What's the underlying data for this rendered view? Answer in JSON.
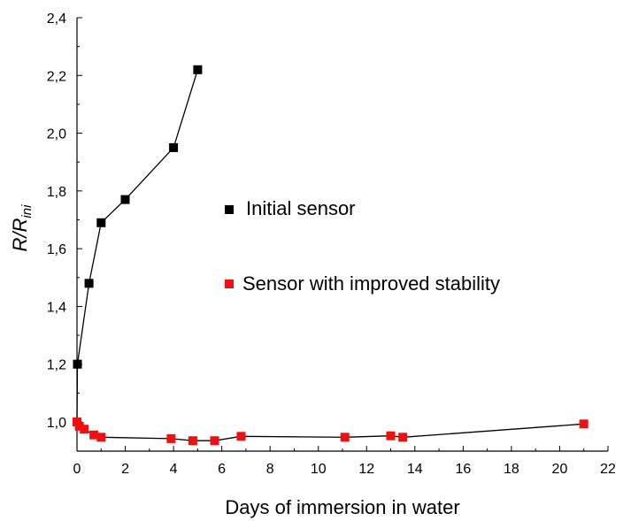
{
  "chart_data": {
    "type": "scatter",
    "xlabel": "Days of immersion in water",
    "ylabel": "R/R",
    "ylabel_sub": "ini",
    "xlim": [
      0,
      22
    ],
    "ylim": [
      0.9,
      2.4
    ],
    "x_ticks": [
      0,
      2,
      4,
      6,
      8,
      10,
      12,
      14,
      16,
      18,
      20,
      22
    ],
    "y_ticks": [
      1.0,
      1.2,
      1.4,
      1.6,
      1.8,
      2.0,
      2.2,
      2.4
    ],
    "x_tick_labels": [
      "0",
      "2",
      "4",
      "6",
      "8",
      "10",
      "12",
      "14",
      "16",
      "18",
      "20",
      "22"
    ],
    "y_tick_labels": [
      "1,0",
      "1,2",
      "1,4",
      "1,6",
      "1,8",
      "2,0",
      "2,2",
      "2,4"
    ],
    "grid": false,
    "legend_position": "center-right",
    "series": [
      {
        "name": "Initial sensor",
        "color": "#000000",
        "marker": "square",
        "x": [
          0,
          0.02,
          0.5,
          1,
          2,
          4,
          5
        ],
        "y": [
          1.0,
          1.2,
          1.48,
          1.69,
          1.77,
          1.95,
          2.22
        ]
      },
      {
        "name": "Sensor with improved stability",
        "color": "#ee1111",
        "marker": "square",
        "x": [
          0,
          0.1,
          0.3,
          0.7,
          1.0,
          3.9,
          4.8,
          5.7,
          6.8,
          11.1,
          13.0,
          13.5,
          21.0
        ],
        "y": [
          1.0,
          0.985,
          0.975,
          0.955,
          0.947,
          0.942,
          0.935,
          0.935,
          0.95,
          0.947,
          0.952,
          0.947,
          0.993
        ]
      }
    ]
  }
}
